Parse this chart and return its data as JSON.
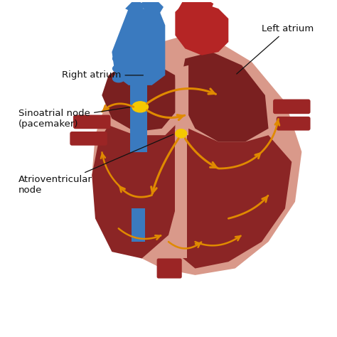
{
  "background_color": "#ffffff",
  "heart_outer_color": "#d9998a",
  "dark_chamber_color": "#7a2020",
  "medium_chamber_color": "#8b2525",
  "blue_vessel_color": "#3a7abf",
  "red_vessel_color": "#9b2525",
  "aorta_color": "#b52525",
  "sa_node_color": "#f5c800",
  "av_node_color": "#f5c800",
  "conduction_color": "#e08a00",
  "label_color": "#111111",
  "labels": {
    "right_atrium": "Right atrium",
    "left_atrium": "Left atrium",
    "sa_node": "Sinoatrial node\n(pacemaker)",
    "av_node": "Atrioventricular\nnode"
  },
  "label_fontsize": 9.5
}
